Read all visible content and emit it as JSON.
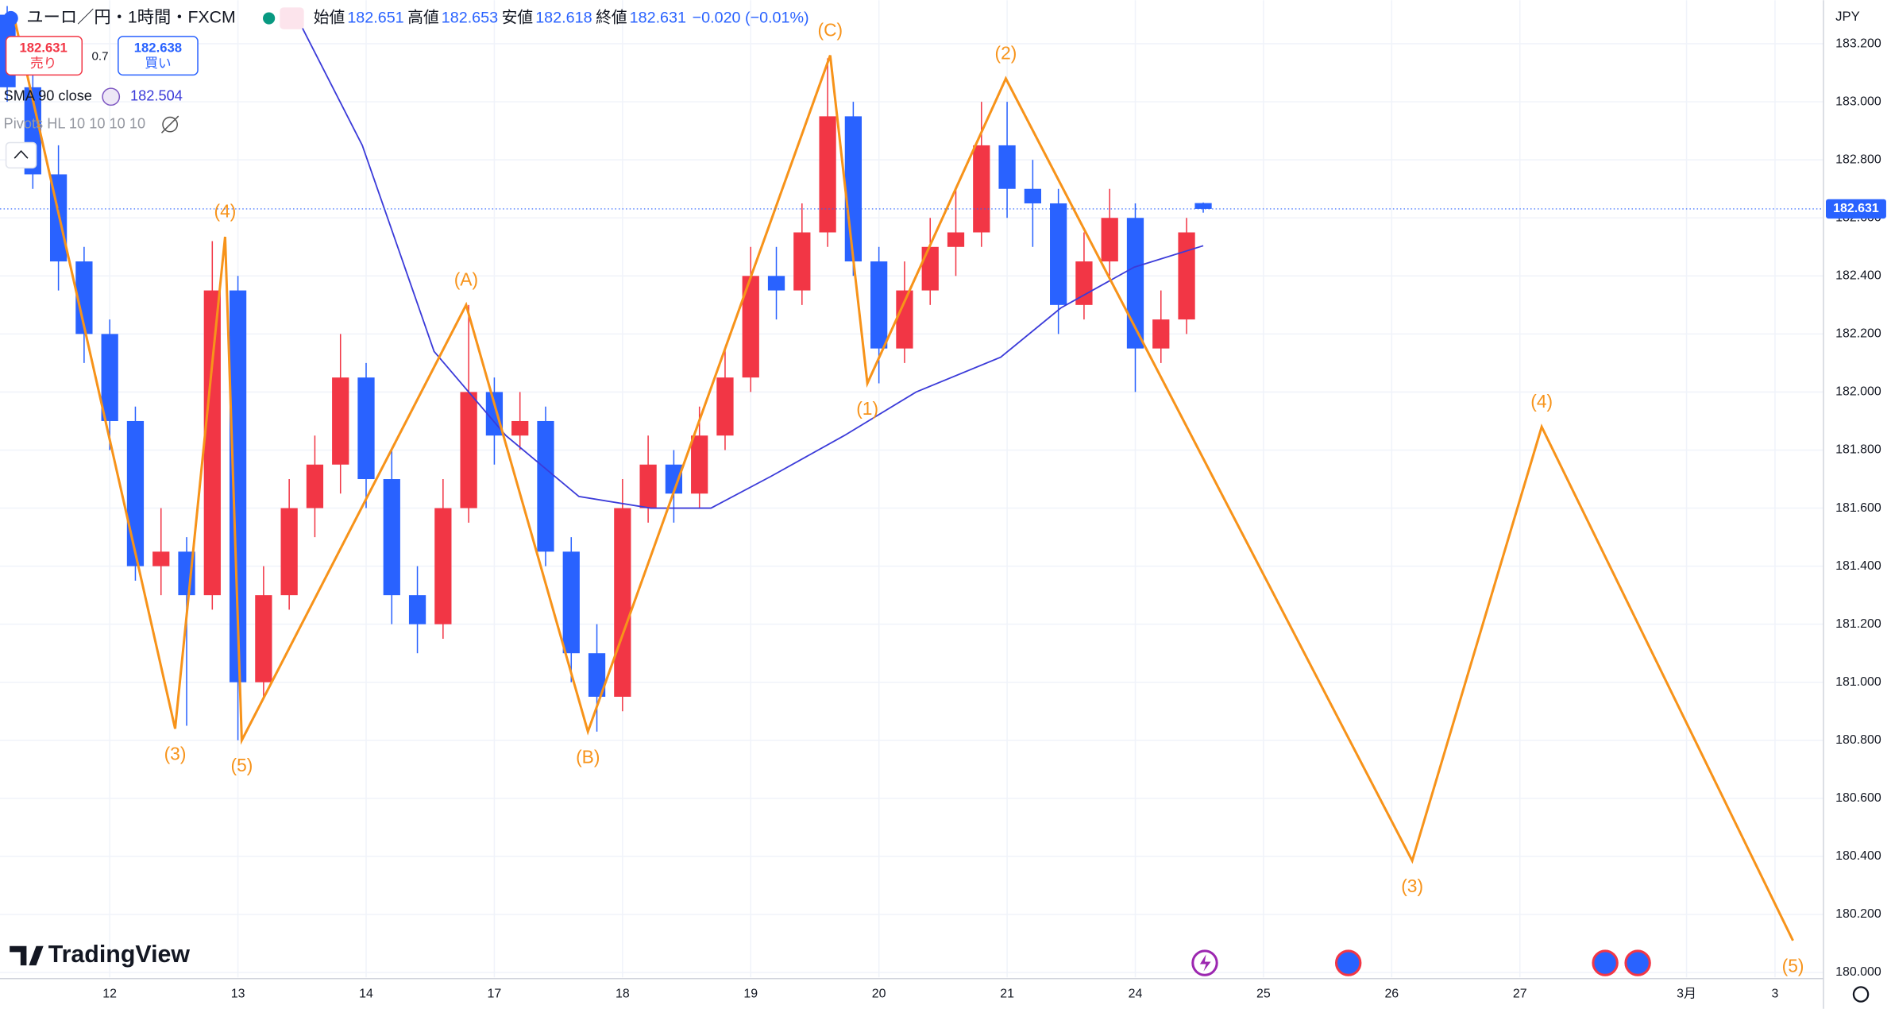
{
  "ui": {
    "symbol": "ユーロ／円・1時間・FXCM",
    "open_label": "始値",
    "high_label": "高値",
    "low_label": "安値",
    "close_label": "終値",
    "change": "−0.020 (−0.01%)",
    "sell": "売り",
    "spread": "0.7",
    "ask": "182.638",
    "buy": "買い",
    "pivots": "Pivots HL 10 10 10 10",
    "currency": "JPY",
    "brand": "TradingView"
  },
  "chart_data": {
    "type": "candlestick",
    "up_color": "#f23645",
    "down_color": "#2962ff",
    "grid": true,
    "xlim": [
      -0.856,
      13.368
    ],
    "ylim": [
      179.983,
      183.35
    ],
    "xticks": [
      {
        "value": 0,
        "label": "12"
      },
      {
        "value": 1,
        "label": "13"
      },
      {
        "value": 2,
        "label": "14"
      },
      {
        "value": 3,
        "label": "17"
      },
      {
        "value": 4,
        "label": "18"
      },
      {
        "value": 5,
        "label": "19"
      },
      {
        "value": 6,
        "label": "20"
      },
      {
        "value": 7,
        "label": "21"
      },
      {
        "value": 8,
        "label": "24"
      },
      {
        "value": 9,
        "label": "25"
      },
      {
        "value": 10,
        "label": "26"
      },
      {
        "value": 11,
        "label": "27"
      },
      {
        "value": 12.3,
        "label": "3月"
      },
      {
        "value": 12.99,
        "label": "3"
      }
    ],
    "yticks": [
      {
        "value": 180,
        "label": "180.000"
      },
      {
        "value": 180.2,
        "label": "180.200"
      },
      {
        "value": 180.4,
        "label": "180.400"
      },
      {
        "value": 180.6,
        "label": "180.600"
      },
      {
        "value": 180.8,
        "label": "180.800"
      },
      {
        "value": 181,
        "label": "181.000"
      },
      {
        "value": 181.2,
        "label": "181.200"
      },
      {
        "value": 181.4,
        "label": "181.400"
      },
      {
        "value": 181.6,
        "label": "181.600"
      },
      {
        "value": 181.8,
        "label": "181.800"
      },
      {
        "value": 182,
        "label": "182.000"
      },
      {
        "value": 182.2,
        "label": "182.200"
      },
      {
        "value": 182.4,
        "label": "182.400"
      },
      {
        "value": 182.6,
        "label": "182.600"
      },
      {
        "value": 182.8,
        "label": "182.800"
      },
      {
        "value": 183,
        "label": "183.000"
      },
      {
        "value": 183.2,
        "label": "183.200"
      }
    ],
    "x": [
      -0.8,
      -0.6,
      -0.4,
      -0.2,
      0,
      0.2,
      0.4,
      0.6,
      0.8,
      1.0,
      1.2,
      1.4,
      1.6,
      1.8,
      2.0,
      2.2,
      2.4,
      2.6,
      2.8,
      3.0,
      3.2,
      3.4,
      3.6,
      3.8,
      4.0,
      4.2,
      4.4,
      4.6,
      4.8,
      5.0,
      5.2,
      5.4,
      5.6,
      5.8,
      6.0,
      6.2,
      6.4,
      6.6,
      6.8,
      7.0,
      7.2,
      7.4,
      7.6,
      7.8,
      8.0,
      8.2,
      8.4,
      8.53
    ],
    "open": [
      183.3,
      183.05,
      182.75,
      182.45,
      182.2,
      181.9,
      181.4,
      181.45,
      181.3,
      182.35,
      181.0,
      181.3,
      181.6,
      181.75,
      182.05,
      181.7,
      181.3,
      181.2,
      181.6,
      182.0,
      181.85,
      181.9,
      181.45,
      181.1,
      180.95,
      181.6,
      181.75,
      181.65,
      181.85,
      182.05,
      182.4,
      182.35,
      182.55,
      182.95,
      182.45,
      182.15,
      182.35,
      182.5,
      182.55,
      182.85,
      182.7,
      182.65,
      182.3,
      182.45,
      182.6,
      182.15,
      182.25,
      182.651
    ],
    "high": [
      183.33,
      183.1,
      182.85,
      182.5,
      182.25,
      181.95,
      181.6,
      181.5,
      182.52,
      182.4,
      181.4,
      181.7,
      181.85,
      182.2,
      182.1,
      181.8,
      181.4,
      181.7,
      182.3,
      182.05,
      182.0,
      181.95,
      181.5,
      181.2,
      181.7,
      181.85,
      181.8,
      181.95,
      182.15,
      182.5,
      182.5,
      182.65,
      183.15,
      183.0,
      182.5,
      182.45,
      182.6,
      182.7,
      183.0,
      183.0,
      182.8,
      182.7,
      182.55,
      182.7,
      182.65,
      182.35,
      182.6,
      182.653
    ],
    "low": [
      183.0,
      182.7,
      182.35,
      182.1,
      181.8,
      181.35,
      181.3,
      180.85,
      181.25,
      180.8,
      180.95,
      181.25,
      181.5,
      181.65,
      181.6,
      181.2,
      181.1,
      181.15,
      181.55,
      181.75,
      181.8,
      181.4,
      181.0,
      180.83,
      180.9,
      181.55,
      181.55,
      181.6,
      181.8,
      182.0,
      182.25,
      182.3,
      182.5,
      182.4,
      182.03,
      182.1,
      182.3,
      182.4,
      182.5,
      182.6,
      182.5,
      182.2,
      182.25,
      182.4,
      182.0,
      182.1,
      182.2,
      182.618
    ],
    "close": [
      183.05,
      182.75,
      182.45,
      182.2,
      181.9,
      181.4,
      181.45,
      181.3,
      182.35,
      181.0,
      181.3,
      181.6,
      181.75,
      182.05,
      181.7,
      181.3,
      181.2,
      181.6,
      182.0,
      181.85,
      181.9,
      181.45,
      181.1,
      180.95,
      181.6,
      181.75,
      181.65,
      181.85,
      182.05,
      182.4,
      182.35,
      182.55,
      182.95,
      182.45,
      182.15,
      182.35,
      182.5,
      182.55,
      182.85,
      182.7,
      182.65,
      182.3,
      182.45,
      182.6,
      182.15,
      182.25,
      182.55,
      182.631
    ],
    "sma": {
      "name": "SMA 90 close",
      "color": "#3b3bd9",
      "x": [
        1.45,
        1.97,
        2.53,
        3.09,
        3.66,
        4.22,
        4.69,
        5.16,
        5.73,
        6.29,
        6.95,
        7.42,
        7.99,
        8.53
      ],
      "values": [
        183.3,
        182.85,
        182.14,
        181.85,
        181.64,
        181.6,
        181.6,
        181.71,
        181.85,
        182.0,
        182.12,
        182.29,
        182.43,
        182.504
      ]
    },
    "wave": {
      "color": "#f7931a",
      "x": [
        -0.75,
        0.51,
        0.9,
        1.03,
        2.78,
        3.73,
        5.62,
        5.91,
        6.99,
        10.16,
        11.17,
        13.13
      ],
      "values": [
        183.3,
        180.84,
        182.535,
        180.8,
        182.3,
        180.83,
        183.16,
        182.03,
        183.08,
        180.385,
        181.88,
        180.11
      ],
      "labels": [
        null,
        "(3)",
        "(4)",
        "(5)",
        "(A)",
        "(B)",
        "(C)",
        "(1)",
        "(2)",
        "(3)",
        "(4)",
        "(5)"
      ]
    }
  }
}
